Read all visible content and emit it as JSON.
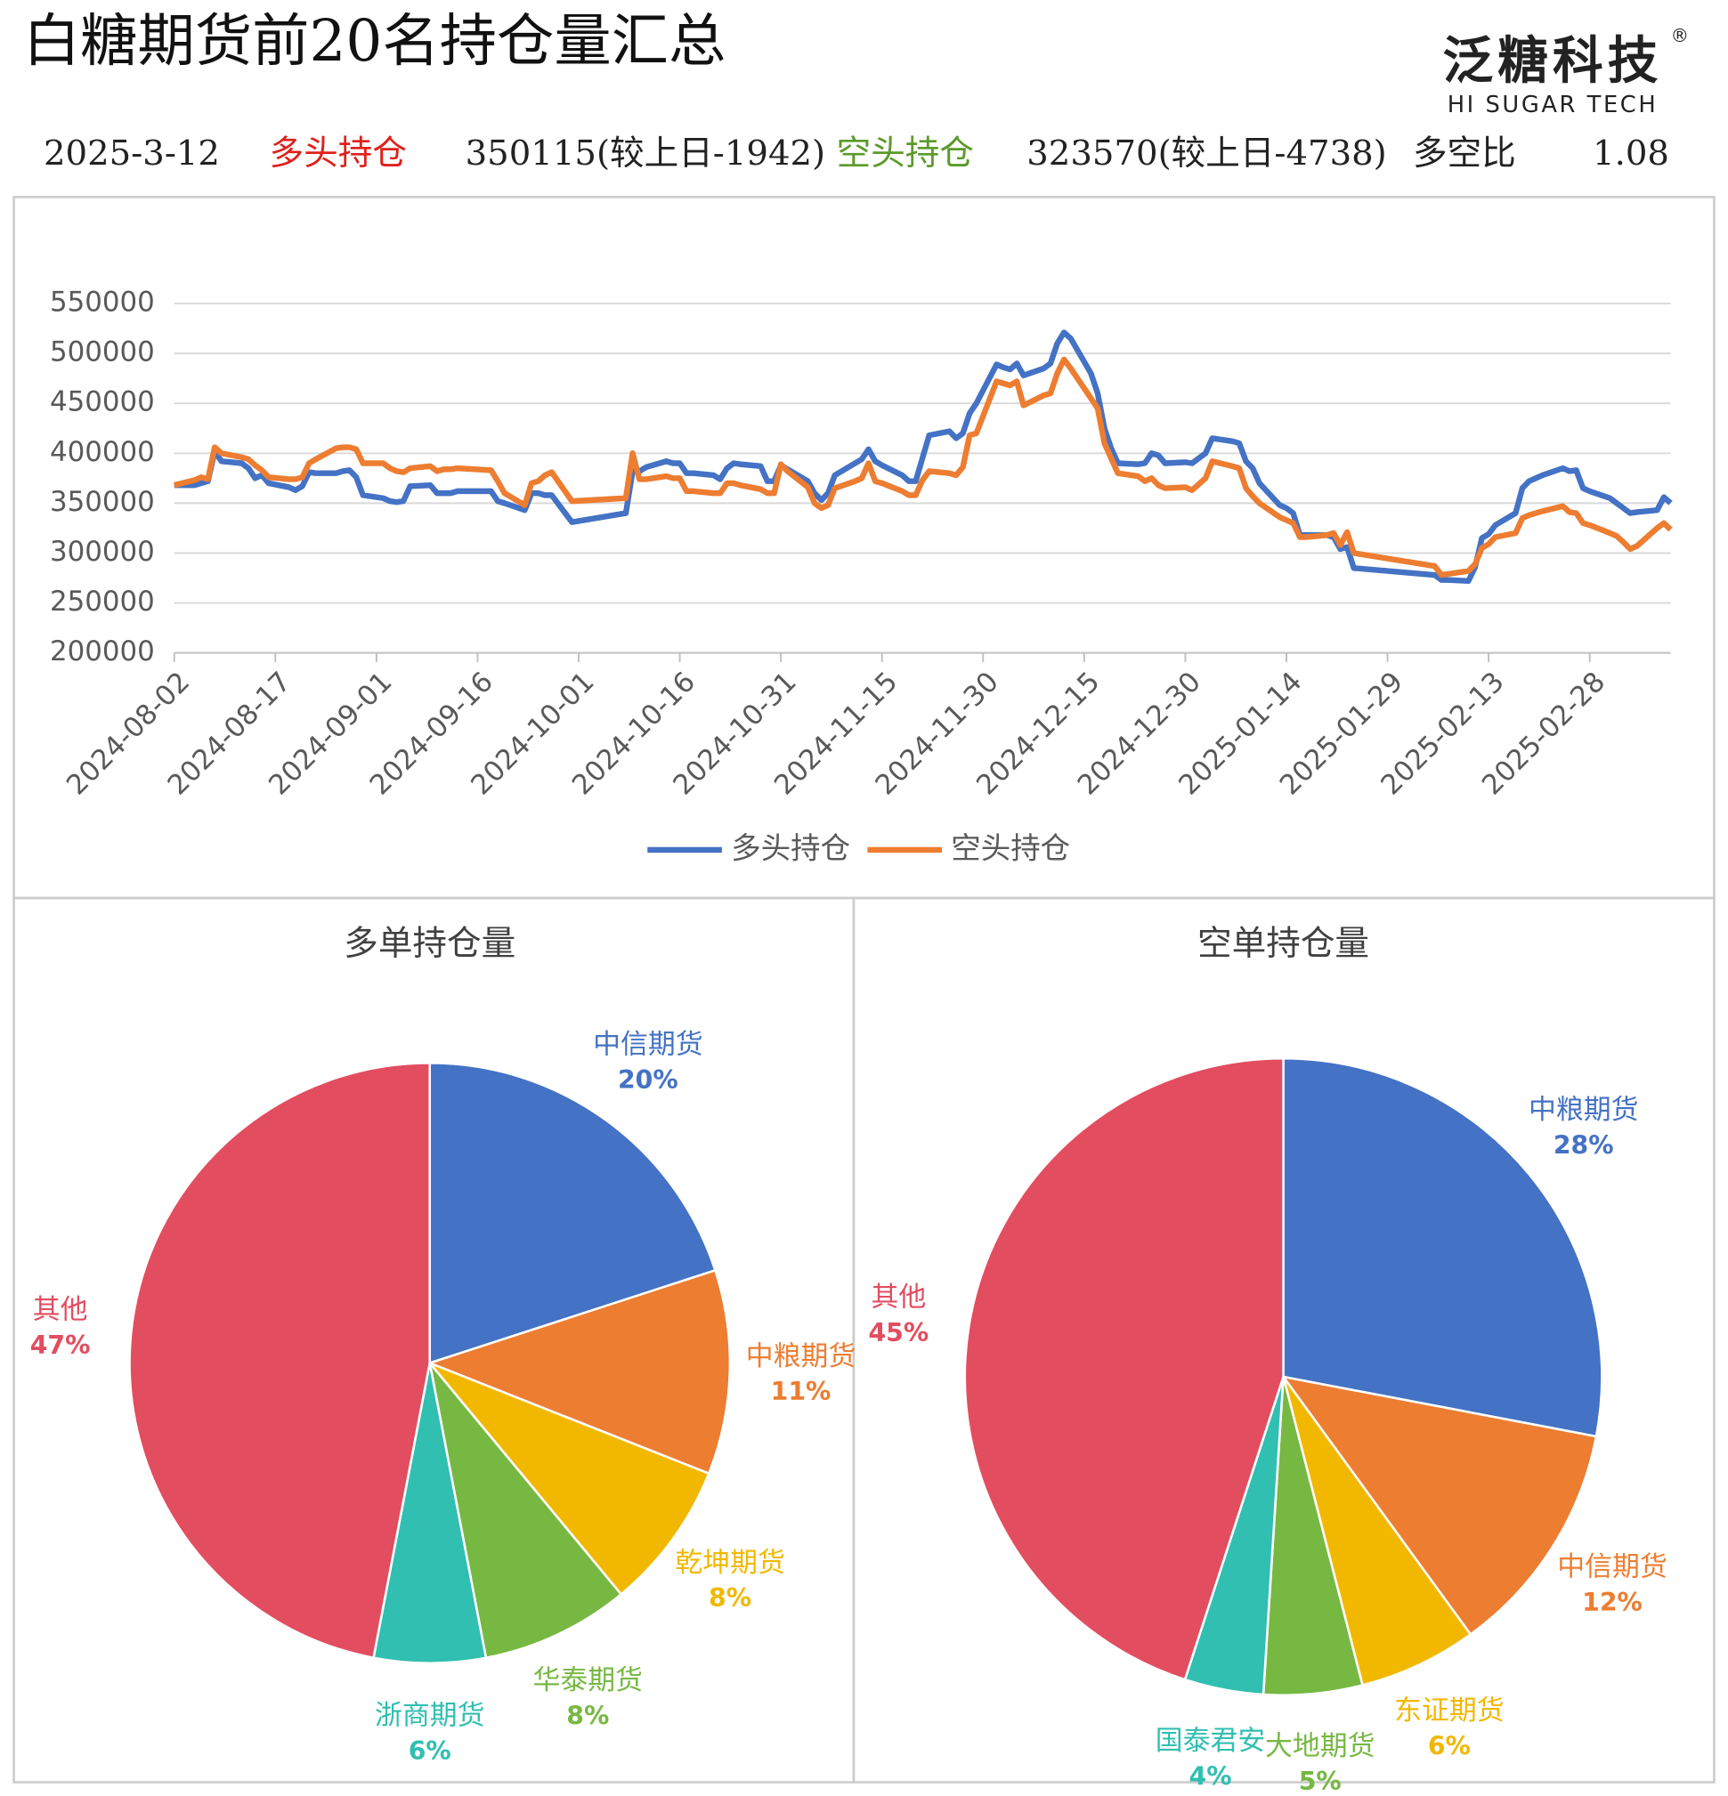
{
  "header": {
    "title": "白糖期货前20名持仓量汇总",
    "logo": "泛糖科技",
    "logo_mark": "®",
    "logo_sub": "HI SUGAR TECH",
    "date": "2025-3-12",
    "long_label": "多头持仓",
    "long_value": "350115(较上日-1942)",
    "short_label": "空头持仓",
    "short_value": "323570(较上日-4738)",
    "ratio_label": "多空比",
    "ratio_value": "1.08"
  },
  "chart_data": [
    {
      "type": "line",
      "x": [
        "2024-08-02",
        "2024-08-05",
        "2024-08-06",
        "2024-08-07",
        "2024-08-08",
        "2024-08-09",
        "2024-08-12",
        "2024-08-13",
        "2024-08-14",
        "2024-08-15",
        "2024-08-16",
        "2024-08-19",
        "2024-08-20",
        "2024-08-21",
        "2024-08-22",
        "2024-08-23",
        "2024-08-26",
        "2024-08-27",
        "2024-08-28",
        "2024-08-29",
        "2024-08-30",
        "2024-09-02",
        "2024-09-03",
        "2024-09-04",
        "2024-09-05",
        "2024-09-06",
        "2024-09-09",
        "2024-09-10",
        "2024-09-11",
        "2024-09-12",
        "2024-09-13",
        "2024-09-18",
        "2024-09-19",
        "2024-09-20",
        "2024-09-23",
        "2024-09-24",
        "2024-09-25",
        "2024-09-26",
        "2024-09-27",
        "2024-09-30",
        "2024-10-08",
        "2024-10-09",
        "2024-10-10",
        "2024-10-11",
        "2024-10-14",
        "2024-10-15",
        "2024-10-16",
        "2024-10-17",
        "2024-10-18",
        "2024-10-21",
        "2024-10-22",
        "2024-10-23",
        "2024-10-24",
        "2024-10-25",
        "2024-10-28",
        "2024-10-29",
        "2024-10-30",
        "2024-10-31",
        "2024-11-01",
        "2024-11-04",
        "2024-11-05",
        "2024-11-06",
        "2024-11-07",
        "2024-11-08",
        "2024-11-11",
        "2024-11-12",
        "2024-11-13",
        "2024-11-14",
        "2024-11-15",
        "2024-11-18",
        "2024-11-19",
        "2024-11-20",
        "2024-11-21",
        "2024-11-22",
        "2024-11-25",
        "2024-11-26",
        "2024-11-27",
        "2024-11-28",
        "2024-11-29",
        "2024-12-02",
        "2024-12-03",
        "2024-12-04",
        "2024-12-05",
        "2024-12-06",
        "2024-12-09",
        "2024-12-10",
        "2024-12-11",
        "2024-12-12",
        "2024-12-13",
        "2024-12-16",
        "2024-12-17",
        "2024-12-18",
        "2024-12-19",
        "2024-12-20",
        "2024-12-23",
        "2024-12-24",
        "2024-12-25",
        "2024-12-26",
        "2024-12-27",
        "2024-12-30",
        "2024-12-31",
        "2025-01-02",
        "2025-01-03",
        "2025-01-06",
        "2025-01-07",
        "2025-01-08",
        "2025-01-09",
        "2025-01-10",
        "2025-01-13",
        "2025-01-14",
        "2025-01-15",
        "2025-01-16",
        "2025-01-17",
        "2025-01-20",
        "2025-01-21",
        "2025-01-22",
        "2025-01-23",
        "2025-01-24",
        "2025-02-05",
        "2025-02-06",
        "2025-02-07",
        "2025-02-10",
        "2025-02-11",
        "2025-02-12",
        "2025-02-13",
        "2025-02-14",
        "2025-02-17",
        "2025-02-18",
        "2025-02-19",
        "2025-02-20",
        "2025-02-21",
        "2025-02-24",
        "2025-02-25",
        "2025-02-26",
        "2025-02-27",
        "2025-02-28",
        "2025-03-03",
        "2025-03-04",
        "2025-03-05",
        "2025-03-06",
        "2025-03-07",
        "2025-03-10",
        "2025-03-11",
        "2025-03-12"
      ],
      "series": [
        {
          "name": "多头持仓",
          "color": "#4472c4",
          "values": [
            368000,
            368000,
            370000,
            372000,
            402000,
            392000,
            390000,
            385000,
            375000,
            378000,
            370000,
            366000,
            363000,
            367000,
            381000,
            380000,
            380000,
            382000,
            383000,
            376000,
            358000,
            355000,
            352000,
            351000,
            352000,
            367000,
            368000,
            360000,
            360000,
            360000,
            362000,
            362000,
            352000,
            350000,
            343000,
            360000,
            360000,
            358000,
            358000,
            331000,
            340000,
            382000,
            382000,
            386000,
            392000,
            390000,
            390000,
            380000,
            380000,
            378000,
            374000,
            385000,
            390000,
            389000,
            387000,
            372000,
            372000,
            388000,
            384000,
            372000,
            360000,
            353000,
            360000,
            378000,
            390000,
            394000,
            404000,
            392000,
            388000,
            378000,
            372000,
            372000,
            395000,
            418000,
            422000,
            415000,
            420000,
            440000,
            450000,
            489000,
            486000,
            484000,
            490000,
            478000,
            485000,
            490000,
            510000,
            521000,
            515000,
            480000,
            460000,
            425000,
            405000,
            390000,
            389000,
            390000,
            400000,
            398000,
            390000,
            391000,
            390000,
            400000,
            415000,
            412000,
            410000,
            392000,
            385000,
            370000,
            348000,
            345000,
            340000,
            318000,
            318000,
            318000,
            316000,
            304000,
            306000,
            285000,
            278000,
            273000,
            273000,
            272000,
            286000,
            315000,
            319000,
            328000,
            340000,
            365000,
            372000,
            375000,
            378000,
            385000,
            382000,
            383000,
            365000,
            362000,
            355000,
            350000,
            345000,
            340000,
            341000,
            343000,
            356000,
            350115
          ]
        },
        {
          "name": "空头持仓",
          "color": "#ed7d31",
          "values": [
            368000,
            373000,
            376000,
            374000,
            406000,
            400000,
            396000,
            394000,
            388000,
            383000,
            376000,
            374000,
            374000,
            376000,
            390000,
            394000,
            405000,
            406000,
            406000,
            404000,
            390000,
            390000,
            385000,
            382000,
            381000,
            385000,
            387000,
            382000,
            384000,
            384000,
            385000,
            383000,
            372000,
            360000,
            348000,
            370000,
            372000,
            378000,
            381000,
            352000,
            355000,
            400000,
            374000,
            374000,
            377000,
            375000,
            375000,
            362000,
            362000,
            360000,
            360000,
            370000,
            370000,
            368000,
            364000,
            360000,
            360000,
            389000,
            382000,
            366000,
            350000,
            345000,
            348000,
            365000,
            372000,
            375000,
            390000,
            372000,
            370000,
            362000,
            358000,
            358000,
            373000,
            382000,
            380000,
            378000,
            386000,
            418000,
            420000,
            472000,
            470000,
            468000,
            472000,
            448000,
            458000,
            460000,
            480000,
            494000,
            485000,
            455000,
            445000,
            410000,
            395000,
            380000,
            377000,
            372000,
            375000,
            368000,
            365000,
            366000,
            363000,
            375000,
            392000,
            387000,
            385000,
            365000,
            357000,
            350000,
            336000,
            333000,
            330000,
            316000,
            316000,
            318000,
            320000,
            308000,
            321000,
            300000,
            287000,
            278000,
            279000,
            282000,
            289000,
            305000,
            309000,
            316000,
            320000,
            335000,
            338000,
            340000,
            342000,
            347000,
            341000,
            340000,
            330000,
            328000,
            320000,
            317000,
            311000,
            304000,
            307000,
            325000,
            330000,
            323570
          ]
        }
      ],
      "xlim": [
        "2024-08-02",
        "2025-03-12"
      ],
      "xticks": [
        "2024-08-02",
        "2024-08-17",
        "2024-09-01",
        "2024-09-16",
        "2024-10-01",
        "2024-10-16",
        "2024-10-31",
        "2024-11-15",
        "2024-11-30",
        "2024-12-15",
        "2024-12-30",
        "2025-01-14",
        "2025-01-29",
        "2025-02-13",
        "2025-02-28"
      ],
      "ylim": [
        200000,
        550000
      ],
      "yticks": [
        200000,
        250000,
        300000,
        350000,
        400000,
        450000,
        500000,
        550000
      ],
      "grid": true,
      "legend": "bottom"
    },
    {
      "type": "pie",
      "title": "多单持仓量",
      "categories": [
        "中信期货",
        "中粮期货",
        "乾坤期货",
        "华泰期货",
        "浙商期货",
        "其他"
      ],
      "values": [
        20,
        11,
        8,
        8,
        6,
        47
      ],
      "value_labels": [
        "20%",
        "11%",
        "8%",
        "8%",
        "6%",
        "47%"
      ],
      "colors": [
        "#4472c4",
        "#ed7d31",
        "#f2b800",
        "#77b843",
        "#30bfb0",
        "#e34d60"
      ]
    },
    {
      "type": "pie",
      "title": "空单持仓量",
      "categories": [
        "中粮期货",
        "中信期货",
        "东证期货",
        "大地期货",
        "国泰君安",
        "其他"
      ],
      "values": [
        28,
        12,
        6,
        5,
        4,
        45
      ],
      "value_labels": [
        "28%",
        "12%",
        "6%",
        "5%",
        "4%",
        "45%"
      ],
      "colors": [
        "#4472c4",
        "#ed7d31",
        "#f2b800",
        "#77b843",
        "#30bfb0",
        "#e34d60"
      ]
    }
  ]
}
